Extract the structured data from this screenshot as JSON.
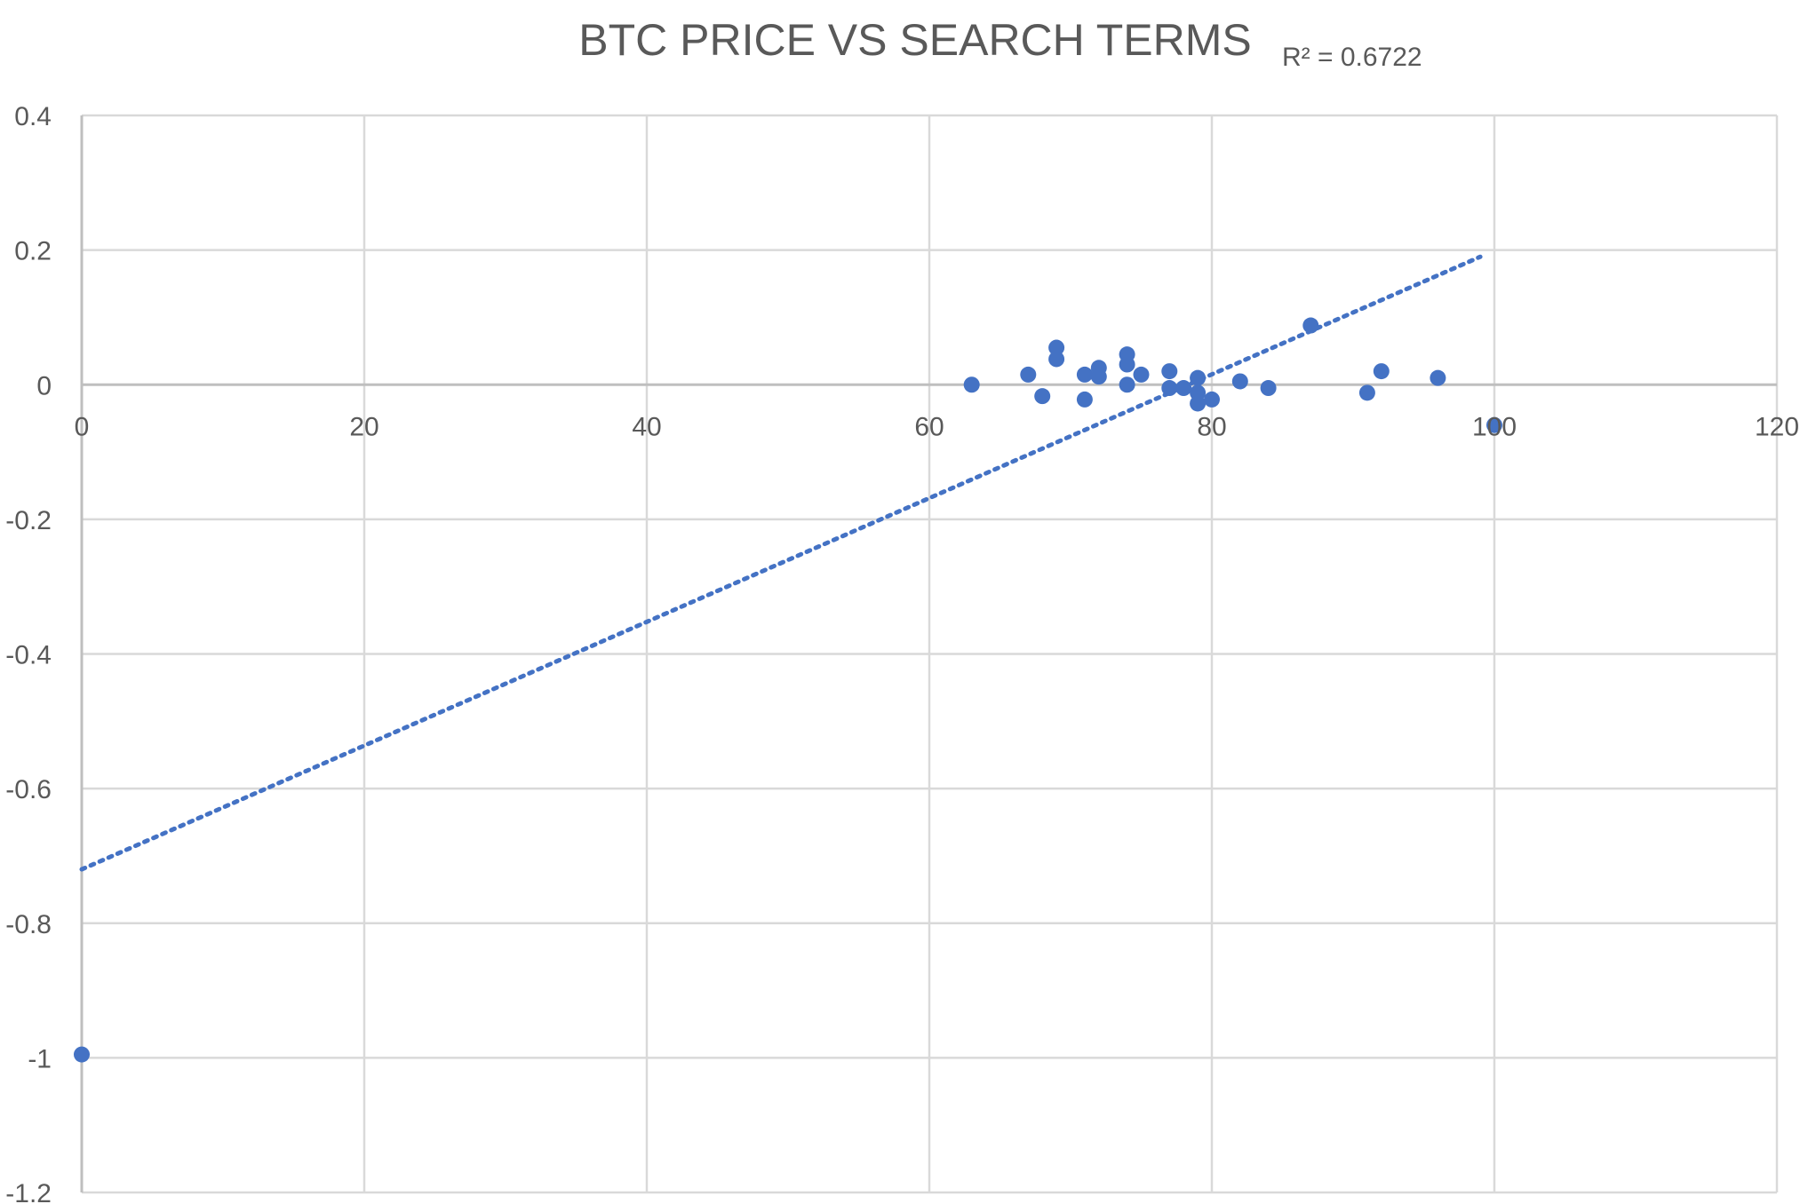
{
  "chart_data": {
    "type": "scatter",
    "title": "BTC PRICE VS SEARCH TERMS",
    "xlabel": "",
    "ylabel": "",
    "xlim": [
      0,
      120
    ],
    "ylim": [
      -1.2,
      0.4
    ],
    "x_ticks": [
      0,
      20,
      40,
      60,
      80,
      100,
      120
    ],
    "y_ticks": [
      0.4,
      0.2,
      0,
      -0.2,
      -0.4,
      -0.6,
      -0.8,
      -1,
      -1.2
    ],
    "x_tick_labels": [
      "0",
      "20",
      "40",
      "60",
      "80",
      "100",
      "120"
    ],
    "y_tick_labels": [
      "0.4",
      "0.2",
      "0",
      "-0.2",
      "-0.4",
      "-0.6",
      "-0.8",
      "-1",
      "-1.2"
    ],
    "grid": true,
    "legend": "none",
    "marker_color": "#4472C4",
    "trendline": {
      "type": "linear",
      "style": "dotted",
      "color": "#4472C4",
      "x": [
        0,
        99
      ],
      "y": [
        -0.72,
        0.19
      ],
      "r_squared_label": "R² = 0.6722"
    },
    "series": [
      {
        "points": [
          [
            0,
            -0.995
          ],
          [
            63,
            0.0
          ],
          [
            67,
            0.015
          ],
          [
            68,
            -0.017
          ],
          [
            69,
            0.055
          ],
          [
            69,
            0.038
          ],
          [
            71,
            0.015
          ],
          [
            71,
            -0.022
          ],
          [
            72,
            0.025
          ],
          [
            72,
            0.012
          ],
          [
            74,
            0.045
          ],
          [
            74,
            0.03
          ],
          [
            74,
            0.0
          ],
          [
            75,
            0.015
          ],
          [
            77,
            0.02
          ],
          [
            77,
            -0.005
          ],
          [
            78,
            -0.005
          ],
          [
            79,
            0.01
          ],
          [
            79,
            -0.012
          ],
          [
            79,
            -0.028
          ],
          [
            80,
            -0.022
          ],
          [
            82,
            0.005
          ],
          [
            84,
            -0.005
          ],
          [
            87,
            0.088
          ],
          [
            91,
            -0.012
          ],
          [
            92,
            0.02
          ],
          [
            96,
            0.01
          ],
          [
            100,
            -0.06
          ]
        ]
      }
    ]
  }
}
